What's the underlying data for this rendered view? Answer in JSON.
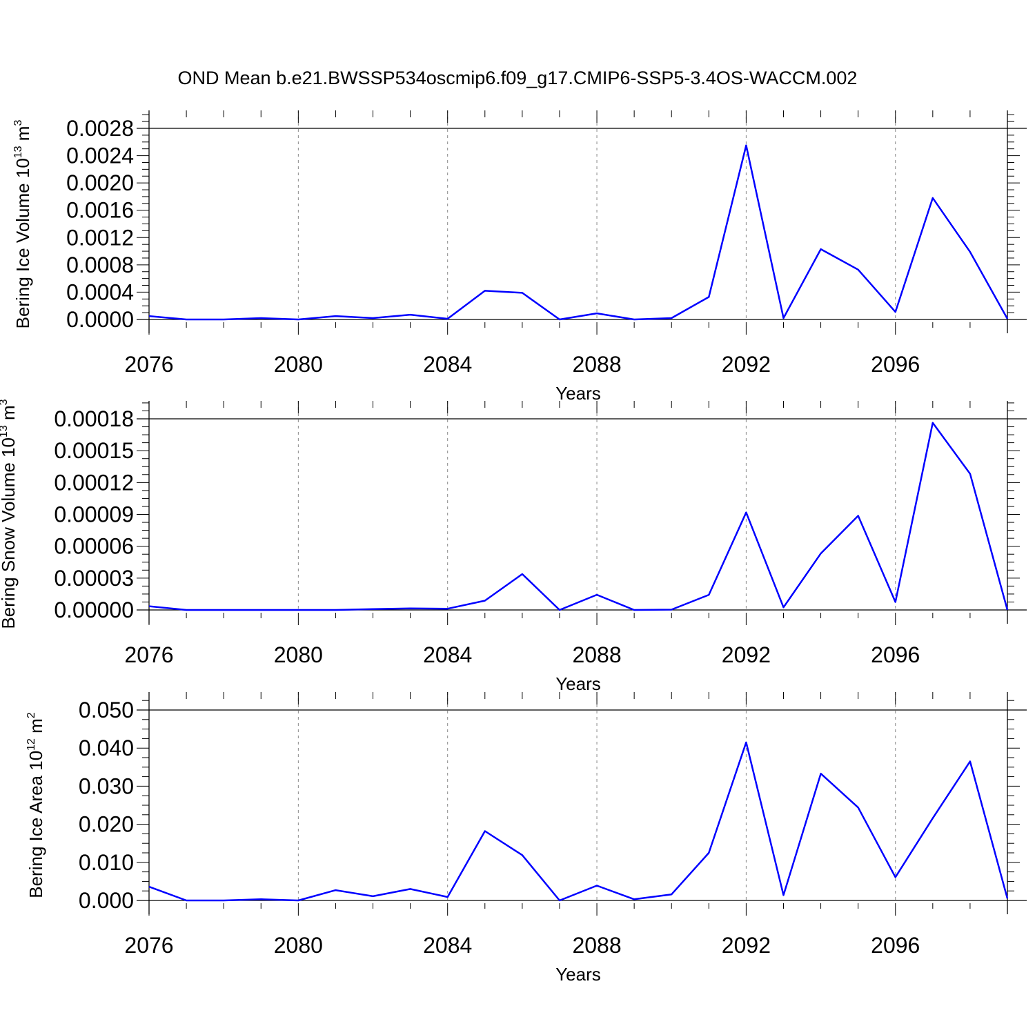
{
  "title": "OND Mean b.e21.BWSSP534oscmip6.f09_g17.CMIP6-SSP5-3.4OS-WACCM.002",
  "chart_data": [
    {
      "type": "line",
      "xlabel": "Years",
      "ylabel": "Bering Ice Volume 10",
      "ylabel_exp": "13",
      "ylabel_unit": " m",
      "ylabel_unit_exp": "3",
      "xlim": [
        2076,
        2099
      ],
      "ylim": [
        0,
        0.0028
      ],
      "grid": "dashed vertical at major x ticks",
      "x_ticks": [
        "2076",
        "2080",
        "2084",
        "2088",
        "2092",
        "2096"
      ],
      "y_ticks": [
        "0.0000",
        "0.0004",
        "0.0008",
        "0.0012",
        "0.0016",
        "0.0020",
        "0.0024",
        "0.0028"
      ],
      "color": "#0000ff",
      "x": [
        2076,
        2077,
        2078,
        2079,
        2080,
        2081,
        2082,
        2083,
        2084,
        2085,
        2086,
        2087,
        2088,
        2089,
        2090,
        2091,
        2092,
        2093,
        2094,
        2095,
        2096,
        2097,
        2098,
        2099
      ],
      "values": [
        5e-05,
        0.0,
        0.0,
        2e-05,
        0.0,
        5e-05,
        2e-05,
        7e-05,
        1e-05,
        0.00042,
        0.00039,
        0.0,
        9e-05,
        0.0,
        2e-05,
        0.00033,
        0.00255,
        2e-05,
        0.00103,
        0.00073,
        0.00011,
        0.00178,
        0.00099,
        1e-05
      ]
    },
    {
      "type": "line",
      "xlabel": "Years",
      "ylabel": "Bering Snow Volume 10",
      "ylabel_exp": "13",
      "ylabel_unit": " m",
      "ylabel_unit_exp": "3",
      "xlim": [
        2076,
        2099
      ],
      "ylim": [
        0,
        0.00018
      ],
      "grid": "dashed vertical at major x ticks",
      "x_ticks": [
        "2076",
        "2080",
        "2084",
        "2088",
        "2092",
        "2096"
      ],
      "y_ticks": [
        "0.00000",
        "0.00003",
        "0.00006",
        "0.00009",
        "0.00012",
        "0.00015",
        "0.00018"
      ],
      "color": "#0000ff",
      "x": [
        2076,
        2077,
        2078,
        2079,
        2080,
        2081,
        2082,
        2083,
        2084,
        2085,
        2086,
        2087,
        2088,
        2089,
        2090,
        2091,
        2092,
        2093,
        2094,
        2095,
        2096,
        2097,
        2098,
        2099
      ],
      "values": [
        3.5e-06,
        0.0,
        0.0,
        0.0,
        0.0,
        0.0,
        8e-07,
        1.5e-06,
        1.2e-06,
        8.8e-06,
        3.38e-05,
        0.0,
        1.43e-05,
        0.0,
        3e-07,
        1.42e-05,
        9.18e-05,
        2.5e-06,
        5.32e-05,
        8.87e-05,
        7.5e-06,
        0.0001762,
        0.0001283,
        0.0
      ]
    },
    {
      "type": "line",
      "xlabel": "Years",
      "ylabel": "Bering Ice Area 10",
      "ylabel_exp": "12",
      "ylabel_unit": " m",
      "ylabel_unit_exp": "2",
      "xlim": [
        2076,
        2099
      ],
      "ylim": [
        0,
        0.05
      ],
      "grid": "dashed vertical at major x ticks",
      "x_ticks": [
        "2076",
        "2080",
        "2084",
        "2088",
        "2092",
        "2096"
      ],
      "y_ticks": [
        "0.000",
        "0.010",
        "0.020",
        "0.030",
        "0.040",
        "0.050"
      ],
      "color": "#0000ff",
      "x": [
        2076,
        2077,
        2078,
        2079,
        2080,
        2081,
        2082,
        2083,
        2084,
        2085,
        2086,
        2087,
        2088,
        2089,
        2090,
        2091,
        2092,
        2093,
        2094,
        2095,
        2096,
        2097,
        2098,
        2099
      ],
      "values": [
        0.0036,
        0.0,
        0.0,
        0.0003,
        0.0,
        0.0027,
        0.0011,
        0.003,
        0.0009,
        0.0182,
        0.0119,
        0.0,
        0.0039,
        0.0003,
        0.0016,
        0.0125,
        0.0415,
        0.0014,
        0.0333,
        0.0244,
        0.0061,
        0.0216,
        0.0365,
        0.0005
      ]
    }
  ]
}
